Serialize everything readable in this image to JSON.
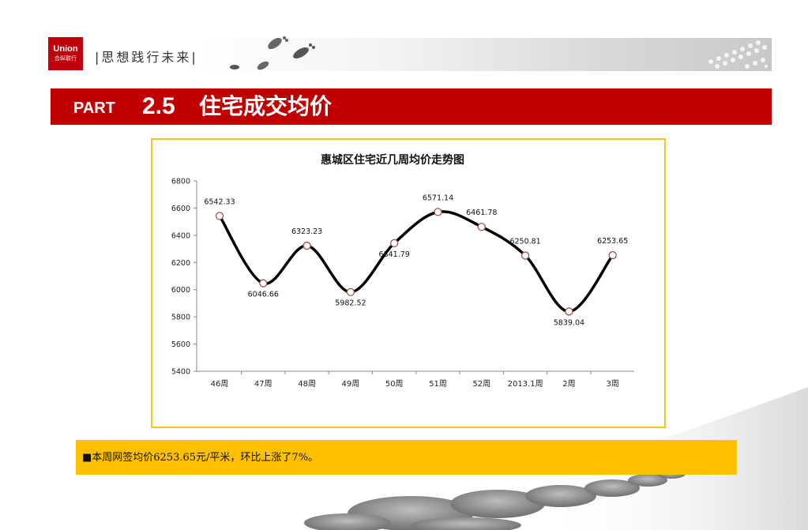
{
  "header": {
    "logo_line1": "Union",
    "logo_line2": "合纵联行",
    "slogan": "|思想践行未来|"
  },
  "title_bar": {
    "part_label": "PART",
    "part_number": "2.5",
    "title": "住宅成交均价"
  },
  "chart_data": {
    "type": "line",
    "title": "惠城区住宅近几周均价走势图",
    "xlabel": "",
    "ylabel": "",
    "categories": [
      "46周",
      "47周",
      "48周",
      "49周",
      "50周",
      "51周",
      "52周",
      "2013.1周",
      "2周",
      "3周"
    ],
    "values": [
      6542.33,
      6046.66,
      6323.23,
      5982.52,
      6341.79,
      6571.14,
      6461.78,
      6250.81,
      5839.04,
      6253.65
    ],
    "data_labels": [
      "6542.33",
      "6046.66",
      "6323.23",
      "5982.52",
      "6341.79",
      "6571.14",
      "6461.78",
      "6250.81",
      "5839.04",
      "6253.65"
    ],
    "label_position": [
      "above",
      "below",
      "above",
      "below",
      "below",
      "above",
      "above",
      "above",
      "below",
      "above"
    ],
    "ylim": [
      5400,
      6800
    ],
    "yticks": [
      "5400",
      "5600",
      "5800",
      "6000",
      "6200",
      "6400",
      "6600",
      "6800"
    ],
    "grid": false,
    "line_color": "#000000",
    "marker_edge_color": "#a0524d",
    "smooth": true
  },
  "note": {
    "text": "■本周网签均价6253.65元/平米，环比上涨了7%。"
  },
  "colors": {
    "title_bar": "#c00000",
    "note_bar": "#ffc000",
    "frame_border": "#f5c518",
    "logo": "#c0000a"
  }
}
